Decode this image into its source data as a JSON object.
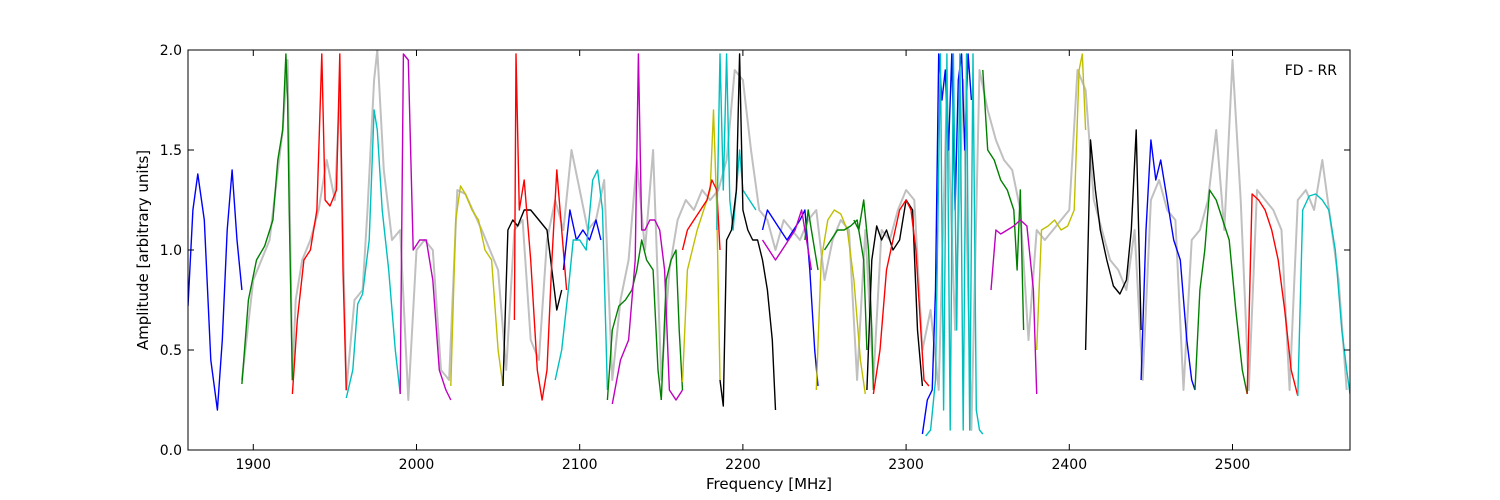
{
  "chart_data": {
    "type": "line",
    "annotation": "FD - RR",
    "xlabel": "Frequency [MHz]",
    "ylabel": "Amplitude [arbitrary units]",
    "xlim": [
      1860,
      2572
    ],
    "ylim": [
      0.0,
      2.0
    ],
    "x_ticks": [
      1900,
      2000,
      2100,
      2200,
      2300,
      2400,
      2500
    ],
    "y_ticks": [
      0.0,
      0.5,
      1.0,
      1.5,
      2.0
    ],
    "y_tick_labels": [
      "0.0",
      "0.5",
      "1.0",
      "1.5",
      "2.0"
    ],
    "grid": false,
    "legend": "none",
    "reference_series": {
      "color": "#c0c0c0",
      "x": [
        1893,
        1900,
        1910,
        1918,
        1921,
        1924,
        1926,
        1930,
        1935,
        1940,
        1945,
        1950,
        1953,
        1957,
        1962,
        1967,
        1970,
        1974,
        1976,
        1980,
        1985,
        1990,
        1995,
        2000,
        2005,
        2010,
        2015,
        2020,
        2025,
        2030,
        2040,
        2050,
        2055,
        2060,
        2065,
        2070,
        2075,
        2080,
        2085,
        2090,
        2095,
        2100,
        2105,
        2110,
        2115,
        2120,
        2125,
        2130,
        2135,
        2140,
        2145,
        2150,
        2155,
        2160,
        2165,
        2170,
        2175,
        2180,
        2185,
        2190,
        2195,
        2200,
        2205,
        2210,
        2215,
        2220,
        2225,
        2230,
        2235,
        2240,
        2245,
        2250,
        2255,
        2260,
        2265,
        2270,
        2275,
        2280,
        2285,
        2290,
        2295,
        2300,
        2305,
        2310,
        2315,
        2320,
        2325,
        2330,
        2335,
        2340,
        2345,
        2350,
        2355,
        2360,
        2365,
        2370,
        2375,
        2380,
        2385,
        2390,
        2395,
        2400,
        2405,
        2410,
        2415,
        2420,
        2425,
        2430,
        2435,
        2440,
        2445,
        2450,
        2455,
        2460,
        2465,
        2470,
        2475,
        2480,
        2485,
        2490,
        2495,
        2500,
        2505,
        2510,
        2515,
        2520,
        2525,
        2530,
        2535,
        2540,
        2545,
        2550,
        2555,
        2560,
        2565,
        2570
      ],
      "y": [
        0.35,
        0.85,
        1.05,
        1.6,
        1.95,
        0.35,
        0.75,
        0.95,
        1.05,
        1.2,
        1.45,
        1.25,
        1.8,
        0.3,
        0.75,
        0.8,
        1.2,
        1.85,
        2.0,
        1.4,
        1.05,
        1.1,
        0.25,
        1.0,
        1.05,
        1.0,
        0.4,
        0.35,
        1.3,
        1.28,
        1.1,
        0.9,
        0.4,
        1.1,
        1.15,
        0.55,
        0.45,
        1.05,
        1.25,
        1.1,
        1.5,
        1.3,
        1.1,
        1.15,
        1.35,
        0.35,
        0.75,
        0.95,
        1.45,
        1.0,
        1.5,
        0.35,
        0.9,
        1.15,
        1.25,
        1.2,
        1.3,
        1.25,
        1.3,
        1.45,
        1.9,
        1.85,
        1.5,
        1.2,
        1.15,
        1.0,
        1.15,
        1.1,
        1.05,
        1.15,
        1.2,
        0.85,
        1.05,
        1.15,
        1.1,
        0.35,
        1.1,
        0.35,
        1.1,
        1.05,
        1.2,
        1.3,
        1.25,
        0.5,
        0.7,
        0.3,
        1.8,
        0.6,
        1.85,
        0.1,
        1.9,
        1.7,
        1.55,
        1.45,
        1.4,
        1.2,
        0.55,
        1.1,
        1.05,
        1.1,
        1.15,
        1.2,
        1.9,
        1.8,
        1.25,
        1.1,
        0.95,
        0.9,
        0.8,
        1.1,
        0.35,
        1.25,
        1.35,
        1.2,
        1.15,
        0.3,
        1.05,
        1.1,
        1.25,
        1.6,
        1.1,
        1.95,
        1.25,
        0.3,
        1.3,
        1.25,
        1.2,
        1.1,
        0.3,
        1.25,
        1.3,
        1.2,
        1.45,
        1.15,
        0.85,
        0.3
      ]
    },
    "series": [
      {
        "color": "#0000ff",
        "x": [
          1860,
          1863,
          1866,
          1870,
          1874,
          1878,
          1881,
          1884,
          1887,
          1890,
          1893
        ],
        "y": [
          0.72,
          1.2,
          1.38,
          1.15,
          0.45,
          0.2,
          0.55,
          1.1,
          1.4,
          1.05,
          0.8
        ]
      },
      {
        "color": "#008000",
        "x": [
          1893,
          1897,
          1902,
          1907,
          1912,
          1915,
          1918,
          1920,
          1921,
          1922,
          1924
        ],
        "y": [
          0.33,
          0.75,
          0.95,
          1.02,
          1.15,
          1.45,
          1.6,
          1.98,
          1.75,
          1.2,
          0.35
        ]
      },
      {
        "color": "#ff0000",
        "x": [
          1924,
          1927,
          1931,
          1935,
          1939,
          1942,
          1944,
          1947,
          1951,
          1953,
          1955,
          1957
        ],
        "y": [
          0.28,
          0.65,
          0.95,
          1.0,
          1.2,
          1.98,
          1.25,
          1.22,
          1.3,
          1.98,
          0.9,
          0.3
        ]
      },
      {
        "color": "#00bfbf",
        "x": [
          1957,
          1961,
          1964,
          1967,
          1971,
          1974,
          1976,
          1979,
          1983,
          1987,
          1990
        ],
        "y": [
          0.26,
          0.4,
          0.73,
          0.78,
          1.05,
          1.7,
          1.6,
          1.2,
          0.9,
          0.5,
          0.28
        ]
      },
      {
        "color": "#bf00bf",
        "x": [
          1990,
          1992,
          1995,
          1998,
          2002,
          2006,
          2010,
          2014,
          2018,
          2021
        ],
        "y": [
          0.28,
          1.98,
          1.95,
          1.0,
          1.05,
          1.05,
          0.85,
          0.4,
          0.3,
          0.25
        ]
      },
      {
        "color": "#bfbf00",
        "x": [
          2021,
          2024,
          2027,
          2030,
          2034,
          2038,
          2042,
          2046,
          2050,
          2053
        ],
        "y": [
          0.32,
          1.15,
          1.32,
          1.28,
          1.2,
          1.15,
          1.0,
          0.95,
          0.5,
          0.32
        ]
      },
      {
        "color": "#000000",
        "x": [
          2053,
          2056,
          2059,
          2062,
          2066,
          2070,
          2075,
          2080,
          2083,
          2086,
          2089
        ],
        "y": [
          0.32,
          1.1,
          1.15,
          1.12,
          1.2,
          1.2,
          1.15,
          1.1,
          0.9,
          0.7,
          0.8
        ]
      },
      {
        "color": "#ff0000",
        "x": [
          2060,
          2061,
          2063,
          2066,
          2070,
          2074,
          2077,
          2080,
          2083,
          2086,
          2089,
          2092
        ],
        "y": [
          0.65,
          1.98,
          1.2,
          1.35,
          0.95,
          0.4,
          0.25,
          0.4,
          0.95,
          1.4,
          1.1,
          0.8
        ]
      },
      {
        "color": "#0000ff",
        "x": [
          2090,
          2094,
          2098,
          2102,
          2106,
          2110,
          2113
        ],
        "y": [
          0.9,
          1.2,
          1.05,
          1.1,
          1.05,
          1.15,
          1.05
        ]
      },
      {
        "color": "#00bfbf",
        "x": [
          2085,
          2089,
          2093,
          2096,
          2100,
          2104,
          2108,
          2111,
          2114,
          2117
        ],
        "y": [
          0.35,
          0.5,
          0.8,
          1.05,
          1.05,
          1.0,
          1.35,
          1.4,
          1.2,
          0.3
        ]
      },
      {
        "color": "#008000",
        "x": [
          2117,
          2120,
          2124,
          2128,
          2132,
          2135,
          2138,
          2141,
          2145,
          2148,
          2150
        ],
        "y": [
          0.25,
          0.6,
          0.72,
          0.75,
          0.8,
          0.9,
          1.05,
          0.95,
          0.9,
          0.4,
          0.25
        ]
      },
      {
        "color": "#bf00bf",
        "x": [
          2120,
          2125,
          2130,
          2134,
          2136,
          2138,
          2140,
          2143,
          2146,
          2149,
          2152,
          2155,
          2159,
          2163
        ],
        "y": [
          0.23,
          0.45,
          0.55,
          0.95,
          1.98,
          1.1,
          1.1,
          1.15,
          1.15,
          1.1,
          0.9,
          0.3,
          0.25,
          0.3
        ]
      },
      {
        "color": "#008000",
        "x": [
          2150,
          2153,
          2156,
          2159,
          2161,
          2163
        ],
        "y": [
          0.25,
          0.85,
          0.95,
          1.0,
          0.6,
          0.3
        ]
      },
      {
        "color": "#bfbf00",
        "x": [
          2163,
          2166,
          2169,
          2172,
          2176,
          2180,
          2182,
          2184,
          2186
        ],
        "y": [
          0.34,
          0.9,
          1.0,
          1.1,
          1.2,
          1.3,
          1.7,
          1.2,
          0.35
        ]
      },
      {
        "color": "#ff0000",
        "x": [
          2163,
          2166,
          2170,
          2174,
          2178,
          2181,
          2184,
          2186
        ],
        "y": [
          1.0,
          1.1,
          1.15,
          1.2,
          1.25,
          1.35,
          1.3,
          1.0
        ]
      },
      {
        "color": "#00bfbf",
        "x": [
          2184,
          2186,
          2188,
          2190,
          2192,
          2194,
          2196,
          2198,
          2200,
          2204,
          2208
        ],
        "y": [
          1.1,
          1.98,
          1.3,
          1.98,
          1.25,
          1.1,
          1.3,
          1.5,
          1.3,
          1.25,
          1.2
        ]
      },
      {
        "color": "#000000",
        "x": [
          2186,
          2188,
          2190,
          2193,
          2196,
          2198,
          2200,
          2203,
          2206,
          2209,
          2212,
          2215,
          2218,
          2220
        ],
        "y": [
          0.35,
          0.22,
          1.05,
          1.1,
          1.3,
          1.98,
          1.2,
          1.1,
          1.05,
          1.05,
          0.95,
          0.8,
          0.55,
          0.2
        ]
      },
      {
        "color": "#0000ff",
        "x": [
          2212,
          2215,
          2219,
          2223,
          2227,
          2231,
          2235,
          2238,
          2241,
          2244,
          2246
        ],
        "y": [
          1.1,
          1.2,
          1.15,
          1.1,
          1.05,
          1.1,
          1.15,
          1.2,
          0.9,
          0.5,
          0.32
        ]
      },
      {
        "color": "#bf00bf",
        "x": [
          2212,
          2216,
          2220,
          2224,
          2228,
          2232,
          2236,
          2240,
          2242
        ],
        "y": [
          1.05,
          1.0,
          0.95,
          1.0,
          1.05,
          1.1,
          1.2,
          1.0,
          0.9
        ]
      },
      {
        "color": "#008000",
        "x": [
          2238,
          2240,
          2242,
          2244,
          2246
        ],
        "y": [
          1.05,
          1.2,
          1.1,
          1.0,
          0.9
        ]
      },
      {
        "color": "#bfbf00",
        "x": [
          2245,
          2248,
          2252,
          2256,
          2260,
          2264,
          2268,
          2272,
          2275
        ],
        "y": [
          0.3,
          0.95,
          1.15,
          1.2,
          1.18,
          1.1,
          0.85,
          0.45,
          0.28
        ]
      },
      {
        "color": "#008000",
        "x": [
          2250,
          2254,
          2258,
          2262,
          2266,
          2270,
          2274,
          2276
        ],
        "y": [
          1.0,
          1.05,
          1.1,
          1.1,
          1.12,
          1.15,
          0.95,
          0.5
        ]
      },
      {
        "color": "#008000",
        "x": [
          2268,
          2271,
          2274,
          2277,
          2279,
          2280
        ],
        "y": [
          1.15,
          1.1,
          1.25,
          1.0,
          0.6,
          0.3
        ]
      },
      {
        "color": "#000000",
        "x": [
          2276,
          2279,
          2282,
          2285,
          2288,
          2292,
          2296,
          2300,
          2304,
          2307,
          2310
        ],
        "y": [
          0.3,
          0.95,
          1.12,
          1.05,
          1.1,
          1.0,
          1.05,
          1.25,
          1.2,
          0.6,
          0.32
        ]
      },
      {
        "color": "#ff0000",
        "x": [
          2280,
          2284,
          2288,
          2292,
          2296,
          2300,
          2303,
          2306,
          2309,
          2311,
          2314
        ],
        "y": [
          0.28,
          0.5,
          0.9,
          1.05,
          1.2,
          1.25,
          1.2,
          1.0,
          0.6,
          0.35,
          0.32
        ]
      },
      {
        "color": "#0000ff",
        "x": [
          2310,
          2313,
          2316,
          2318,
          2320,
          2322,
          2324,
          2326,
          2328,
          2330,
          2332,
          2334,
          2336,
          2338,
          2340
        ],
        "y": [
          0.08,
          0.25,
          0.3,
          0.8,
          1.98,
          1.75,
          1.9,
          1.5,
          1.98,
          1.2,
          1.85,
          1.98,
          1.5,
          1.98,
          1.75
        ]
      },
      {
        "color": "#00bfbf",
        "x": [
          2312,
          2315,
          2318,
          2321,
          2323,
          2325,
          2327,
          2329,
          2331,
          2333,
          2335,
          2337,
          2339,
          2341,
          2343,
          2345,
          2347
        ],
        "y": [
          0.07,
          0.1,
          0.35,
          1.98,
          0.2,
          1.98,
          0.1,
          1.98,
          0.6,
          1.98,
          0.1,
          1.98,
          0.1,
          1.98,
          0.2,
          0.1,
          0.08
        ]
      },
      {
        "color": "#008000",
        "x": [
          2347,
          2350,
          2354,
          2358,
          2362,
          2366,
          2368,
          2370,
          2372
        ],
        "y": [
          1.9,
          1.5,
          1.45,
          1.35,
          1.3,
          1.2,
          0.9,
          1.3,
          0.6
        ]
      },
      {
        "color": "#bf00bf",
        "x": [
          2352,
          2355,
          2358,
          2362,
          2366,
          2370,
          2374,
          2378,
          2380
        ],
        "y": [
          0.8,
          1.1,
          1.08,
          1.1,
          1.12,
          1.15,
          1.12,
          0.8,
          0.28
        ]
      },
      {
        "color": "#bfbf00",
        "x": [
          2380,
          2383,
          2387,
          2391,
          2395,
          2399,
          2403,
          2406,
          2408,
          2410
        ],
        "y": [
          0.5,
          1.1,
          1.12,
          1.15,
          1.1,
          1.12,
          1.2,
          1.9,
          1.98,
          1.6
        ]
      },
      {
        "color": "#000000",
        "x": [
          2410,
          2413,
          2416,
          2419,
          2423,
          2427,
          2431,
          2435,
          2438,
          2441,
          2444
        ],
        "y": [
          0.5,
          1.55,
          1.3,
          1.1,
          0.95,
          0.82,
          0.78,
          0.85,
          1.1,
          1.6,
          0.6
        ]
      },
      {
        "color": "#0000ff",
        "x": [
          2444,
          2447,
          2450,
          2453,
          2456,
          2460,
          2464,
          2468,
          2472,
          2475,
          2477
        ],
        "y": [
          0.35,
          1.1,
          1.55,
          1.35,
          1.45,
          1.25,
          1.05,
          0.95,
          0.55,
          0.35,
          0.3
        ]
      },
      {
        "color": "#008000",
        "x": [
          2477,
          2480,
          2483,
          2486,
          2490,
          2494,
          2498,
          2502,
          2506,
          2509
        ],
        "y": [
          0.3,
          0.8,
          1.0,
          1.3,
          1.25,
          1.15,
          1.05,
          0.7,
          0.4,
          0.28
        ]
      },
      {
        "color": "#ff0000",
        "x": [
          2509,
          2512,
          2516,
          2520,
          2524,
          2528,
          2532,
          2536,
          2540
        ],
        "y": [
          0.28,
          1.28,
          1.25,
          1.2,
          1.1,
          0.95,
          0.7,
          0.4,
          0.27
        ]
      },
      {
        "color": "#00bfbf",
        "x": [
          2540,
          2543,
          2547,
          2551,
          2555,
          2559,
          2563,
          2567,
          2570,
          2572
        ],
        "y": [
          0.27,
          1.2,
          1.27,
          1.28,
          1.25,
          1.2,
          1.0,
          0.6,
          0.4,
          0.28
        ]
      }
    ]
  }
}
